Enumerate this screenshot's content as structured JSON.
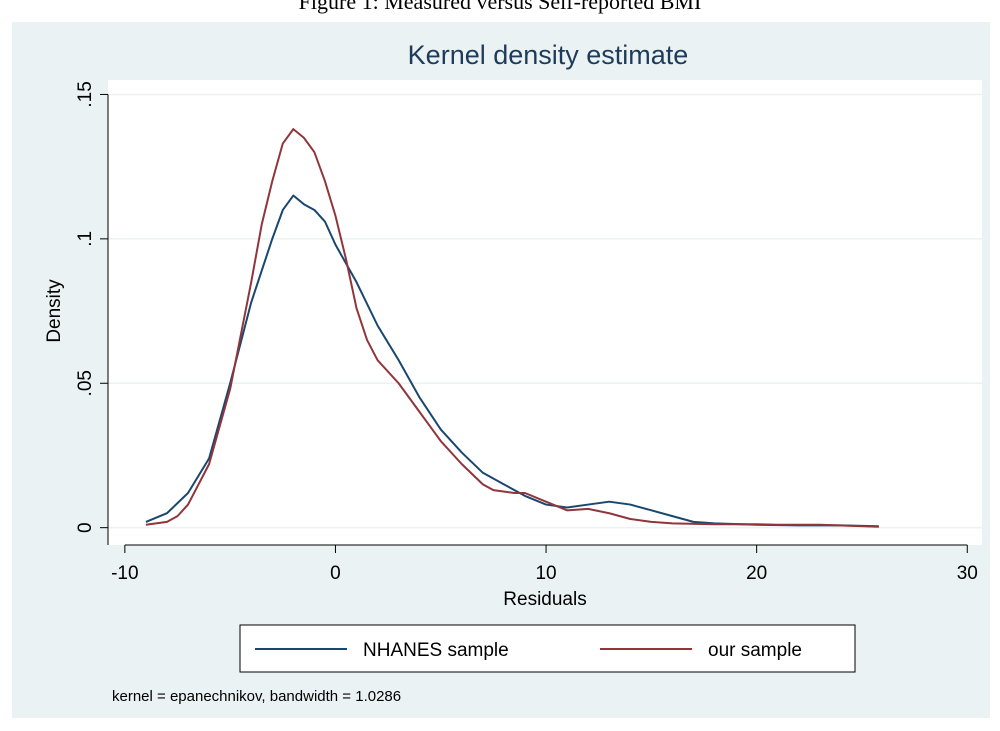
{
  "caption": "Figure 1: Measured versus Self-reported BMI",
  "chart_data": {
    "type": "line",
    "title": "Kernel density estimate",
    "x_label": "Residuals",
    "y_label": "Density",
    "note": "kernel = epanechnikov, bandwidth = 1.0286",
    "xlim": [
      -10.8,
      30.7
    ],
    "ylim": [
      -0.006,
      0.155
    ],
    "xticks": [
      -10,
      0,
      10,
      20,
      30
    ],
    "yticks": [
      0,
      {
        "value": 0.05,
        "label": ".05"
      },
      {
        "value": 0.1,
        "label": ".1"
      },
      {
        "value": 0.15,
        "label": ".15"
      }
    ],
    "grid": true,
    "legend": "bottom",
    "series": [
      {
        "name": "NHANES sample",
        "color": "#1a476f",
        "x": [
          -9,
          -8,
          -7,
          -6,
          -5,
          -4,
          -3,
          -2.5,
          -2,
          -1.5,
          -1,
          -0.5,
          0,
          1,
          2,
          3,
          4,
          5,
          6,
          7,
          8,
          9,
          10,
          11,
          12,
          13,
          14,
          15,
          16,
          17,
          18,
          20,
          22,
          24,
          25.8
        ],
        "values": [
          0.002,
          0.005,
          0.012,
          0.024,
          0.05,
          0.078,
          0.1,
          0.11,
          0.115,
          0.112,
          0.11,
          0.106,
          0.098,
          0.085,
          0.07,
          0.058,
          0.045,
          0.034,
          0.026,
          0.019,
          0.015,
          0.011,
          0.008,
          0.007,
          0.008,
          0.009,
          0.008,
          0.006,
          0.004,
          0.002,
          0.0015,
          0.001,
          0.0008,
          0.0008,
          0.0005
        ]
      },
      {
        "name": "our sample",
        "color": "#90353b",
        "x": [
          -9,
          -8,
          -7.5,
          -7,
          -6,
          -5,
          -4,
          -3.5,
          -3,
          -2.5,
          -2,
          -1.5,
          -1,
          -0.5,
          0,
          0.5,
          1,
          1.5,
          2,
          3,
          4,
          4.5,
          5,
          6,
          7,
          7.5,
          8.5,
          9,
          10,
          11,
          12,
          13,
          14,
          15,
          16,
          18,
          20,
          21,
          23,
          25.8
        ],
        "values": [
          0.001,
          0.002,
          0.004,
          0.008,
          0.022,
          0.048,
          0.085,
          0.105,
          0.12,
          0.133,
          0.138,
          0.135,
          0.13,
          0.12,
          0.108,
          0.093,
          0.076,
          0.065,
          0.058,
          0.05,
          0.04,
          0.035,
          0.03,
          0.022,
          0.015,
          0.013,
          0.012,
          0.012,
          0.009,
          0.006,
          0.0065,
          0.005,
          0.003,
          0.002,
          0.0015,
          0.0012,
          0.0012,
          0.001,
          0.001,
          0.0003
        ]
      }
    ]
  }
}
